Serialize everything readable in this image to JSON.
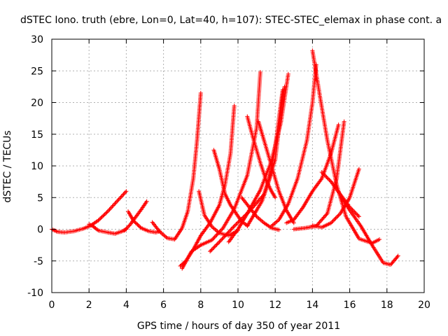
{
  "chart_data": {
    "type": "scatter",
    "title": "dSTEC Iono. truth (ebre, Lon=0, Lat=40, h=107): STEC-STEC_elemax in phase cont. a",
    "xlabel": "GPS time / hours of day 350 of year 2011",
    "ylabel": "dSTEC  / TECUs",
    "xlim": [
      0,
      20
    ],
    "ylim": [
      -10,
      30
    ],
    "xticks": [
      0,
      2,
      4,
      6,
      8,
      10,
      12,
      14,
      16,
      18,
      20
    ],
    "yticks": [
      -10,
      -5,
      0,
      5,
      10,
      15,
      20,
      25,
      30
    ],
    "grid": true,
    "marker": "+",
    "color": "#ff0000",
    "series": [
      {
        "x": [
          0.0,
          0.3,
          0.7,
          1.2,
          1.7,
          2.1,
          2.5,
          3.0,
          3.5,
          4.0
        ],
        "y": [
          0.0,
          -0.4,
          -0.5,
          -0.3,
          0.1,
          0.6,
          1.4,
          2.8,
          4.4,
          6.0
        ]
      },
      {
        "x": [
          2.0,
          2.2,
          2.5,
          3.0,
          3.4,
          3.8,
          4.0
        ],
        "y": [
          0.8,
          0.5,
          -0.2,
          -0.5,
          -0.7,
          -0.3,
          0.0
        ]
      },
      {
        "x": [
          3.9,
          4.2,
          4.5,
          4.8,
          5.1
        ],
        "y": [
          -0.2,
          0.7,
          1.9,
          3.1,
          4.4
        ]
      },
      {
        "x": [
          4.1,
          4.4,
          4.8,
          5.2,
          5.6,
          5.8
        ],
        "y": [
          2.8,
          1.3,
          0.2,
          -0.3,
          -0.5,
          -0.3
        ]
      },
      {
        "x": [
          5.4,
          5.8,
          6.2,
          6.6,
          7.0,
          7.3,
          7.6,
          7.8,
          8.0
        ],
        "y": [
          1.1,
          -0.4,
          -1.4,
          -1.6,
          0.2,
          2.8,
          8.0,
          14.0,
          21.5
        ]
      },
      {
        "x": [
          6.9,
          7.2,
          7.6,
          8.0,
          8.5,
          9.0,
          9.3,
          9.6,
          9.8
        ],
        "y": [
          -5.8,
          -5.0,
          -3.2,
          -1.0,
          1.0,
          3.8,
          7.0,
          12.0,
          19.5
        ]
      },
      {
        "x": [
          7.0,
          7.5,
          8.0,
          8.6,
          9.2,
          9.8,
          10.5,
          11.0,
          11.2
        ],
        "y": [
          -6.2,
          -3.5,
          -2.5,
          -1.7,
          0.2,
          3.2,
          8.5,
          16.0,
          24.8
        ]
      },
      {
        "x": [
          7.9,
          8.2,
          8.6,
          9.0,
          9.5,
          10.0
        ],
        "y": [
          6.0,
          2.2,
          0.4,
          -0.6,
          -1.0,
          -0.2
        ]
      },
      {
        "x": [
          8.7,
          9.0,
          9.3,
          9.6,
          9.9,
          10.2,
          10.5
        ],
        "y": [
          12.5,
          9.5,
          5.6,
          3.8,
          2.5,
          1.2,
          0.6
        ]
      },
      {
        "x": [
          10.5,
          10.8,
          11.2,
          11.5,
          11.8,
          12.0
        ],
        "y": [
          17.8,
          14.5,
          10.5,
          7.8,
          6.0,
          5.0
        ]
      },
      {
        "x": [
          8.5,
          9.0,
          9.8,
          10.6,
          11.4,
          12.0,
          12.2,
          12.4,
          12.5
        ],
        "y": [
          -3.5,
          -2.0,
          0.5,
          2.8,
          5.5,
          11.0,
          16.0,
          21.0,
          22.5
        ]
      },
      {
        "x": [
          9.5,
          10.0,
          10.6,
          11.2,
          11.8,
          12.3,
          12.7
        ],
        "y": [
          -2.0,
          0.0,
          3.0,
          6.2,
          10.8,
          16.8,
          24.5
        ]
      },
      {
        "x": [
          10.5,
          10.9,
          11.3,
          11.7,
          12.0,
          12.4
        ],
        "y": [
          0.5,
          2.5,
          4.5,
          8.0,
          13.0,
          22.0
        ]
      },
      {
        "x": [
          11.1,
          11.4,
          11.8,
          12.2,
          12.6,
          13.0
        ],
        "y": [
          17.0,
          14.0,
          10.0,
          6.0,
          3.0,
          1.0
        ]
      },
      {
        "x": [
          12.6,
          13.0,
          13.5,
          14.0,
          14.5,
          15.0,
          15.4
        ],
        "y": [
          1.0,
          1.5,
          3.5,
          6.0,
          8.0,
          12.0,
          16.5
        ]
      },
      {
        "x": [
          11.8,
          12.2,
          12.7,
          13.2,
          13.7,
          14.0,
          14.2
        ],
        "y": [
          0.5,
          1.5,
          4.0,
          8.0,
          14.0,
          20.0,
          26.0
        ]
      },
      {
        "x": [
          14.0,
          14.4,
          14.8,
          15.3,
          15.8,
          16.5,
          17.2,
          17.6
        ],
        "y": [
          28.2,
          21.0,
          14.0,
          7.0,
          2.0,
          -1.5,
          -2.2,
          -1.6
        ]
      },
      {
        "x": [
          14.0,
          14.5,
          15.0,
          15.5,
          16.0,
          16.5
        ],
        "y": [
          0.6,
          0.3,
          1.0,
          2.5,
          5.0,
          9.5
        ]
      },
      {
        "x": [
          13.0,
          13.6,
          14.2,
          14.8,
          15.3,
          15.7
        ],
        "y": [
          0.0,
          0.2,
          0.5,
          2.5,
          8.0,
          17.0
        ]
      },
      {
        "x": [
          14.5,
          15.0,
          15.5,
          16.0,
          16.5
        ],
        "y": [
          9.0,
          7.5,
          5.5,
          3.5,
          2.0
        ]
      },
      {
        "x": [
          15.6,
          16.0,
          16.6,
          17.2,
          17.8,
          18.2,
          18.6
        ],
        "y": [
          4.8,
          3.0,
          0.5,
          -2.5,
          -5.3,
          -5.6,
          -4.2
        ]
      },
      {
        "x": [
          10.2,
          10.6,
          11.0,
          11.4,
          11.8,
          12.2
        ],
        "y": [
          5.0,
          3.5,
          2.0,
          1.0,
          0.2,
          -0.1
        ]
      }
    ]
  }
}
